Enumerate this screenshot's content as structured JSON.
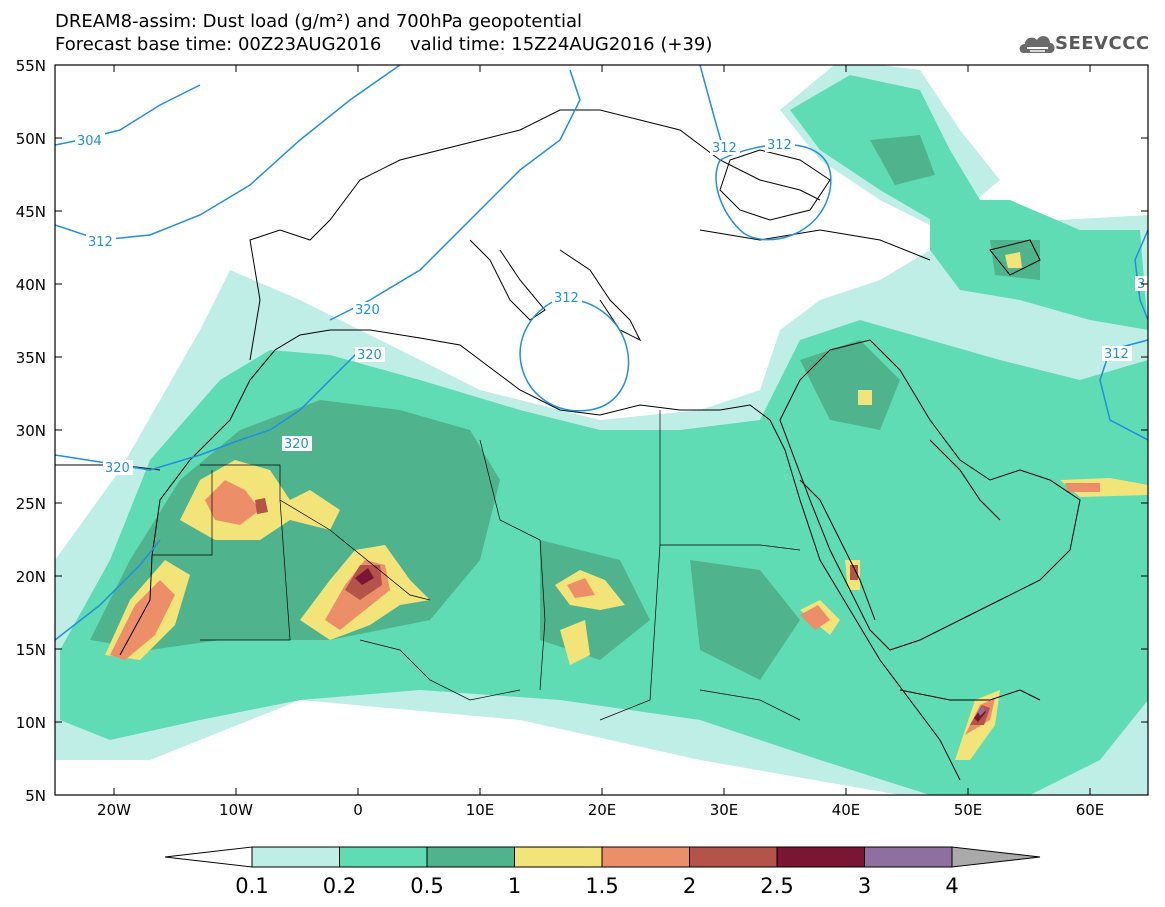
{
  "header": {
    "title_line1": "DREAM8-assim: Dust load (g/m²) and 700hPa geopotential",
    "title_line2": "Forecast base time: 00Z23AUG2016     valid time: 15Z24AUG2016 (+39)"
  },
  "logo": {
    "text": "SEEVCCC",
    "icon": "cloud-icon"
  },
  "map": {
    "lat_labels": [
      "55N",
      "50N",
      "45N",
      "40N",
      "35N",
      "30N",
      "25N",
      "20N",
      "15N",
      "10N",
      "5N"
    ],
    "lon_labels": [
      "20W",
      "10W",
      "0",
      "10E",
      "20E",
      "30E",
      "40E",
      "50E",
      "60E"
    ],
    "contour_labels": [
      "304",
      "312",
      "320",
      "320",
      "320",
      "320",
      "312",
      "312",
      "312",
      "312",
      "3"
    ]
  },
  "legend": {
    "values": [
      "0.1",
      "0.2",
      "0.5",
      "1",
      "1.5",
      "2",
      "2.5",
      "3",
      "4"
    ],
    "colors": [
      "#bfeee6",
      "#5fdcb3",
      "#4fb48d",
      "#f3e47a",
      "#ec8f68",
      "#b3534a",
      "#7a1533",
      "#8f6ea0"
    ]
  },
  "colors": {
    "coast": "#000000",
    "contour": "#1f8fe0",
    "frame": "#000000"
  }
}
